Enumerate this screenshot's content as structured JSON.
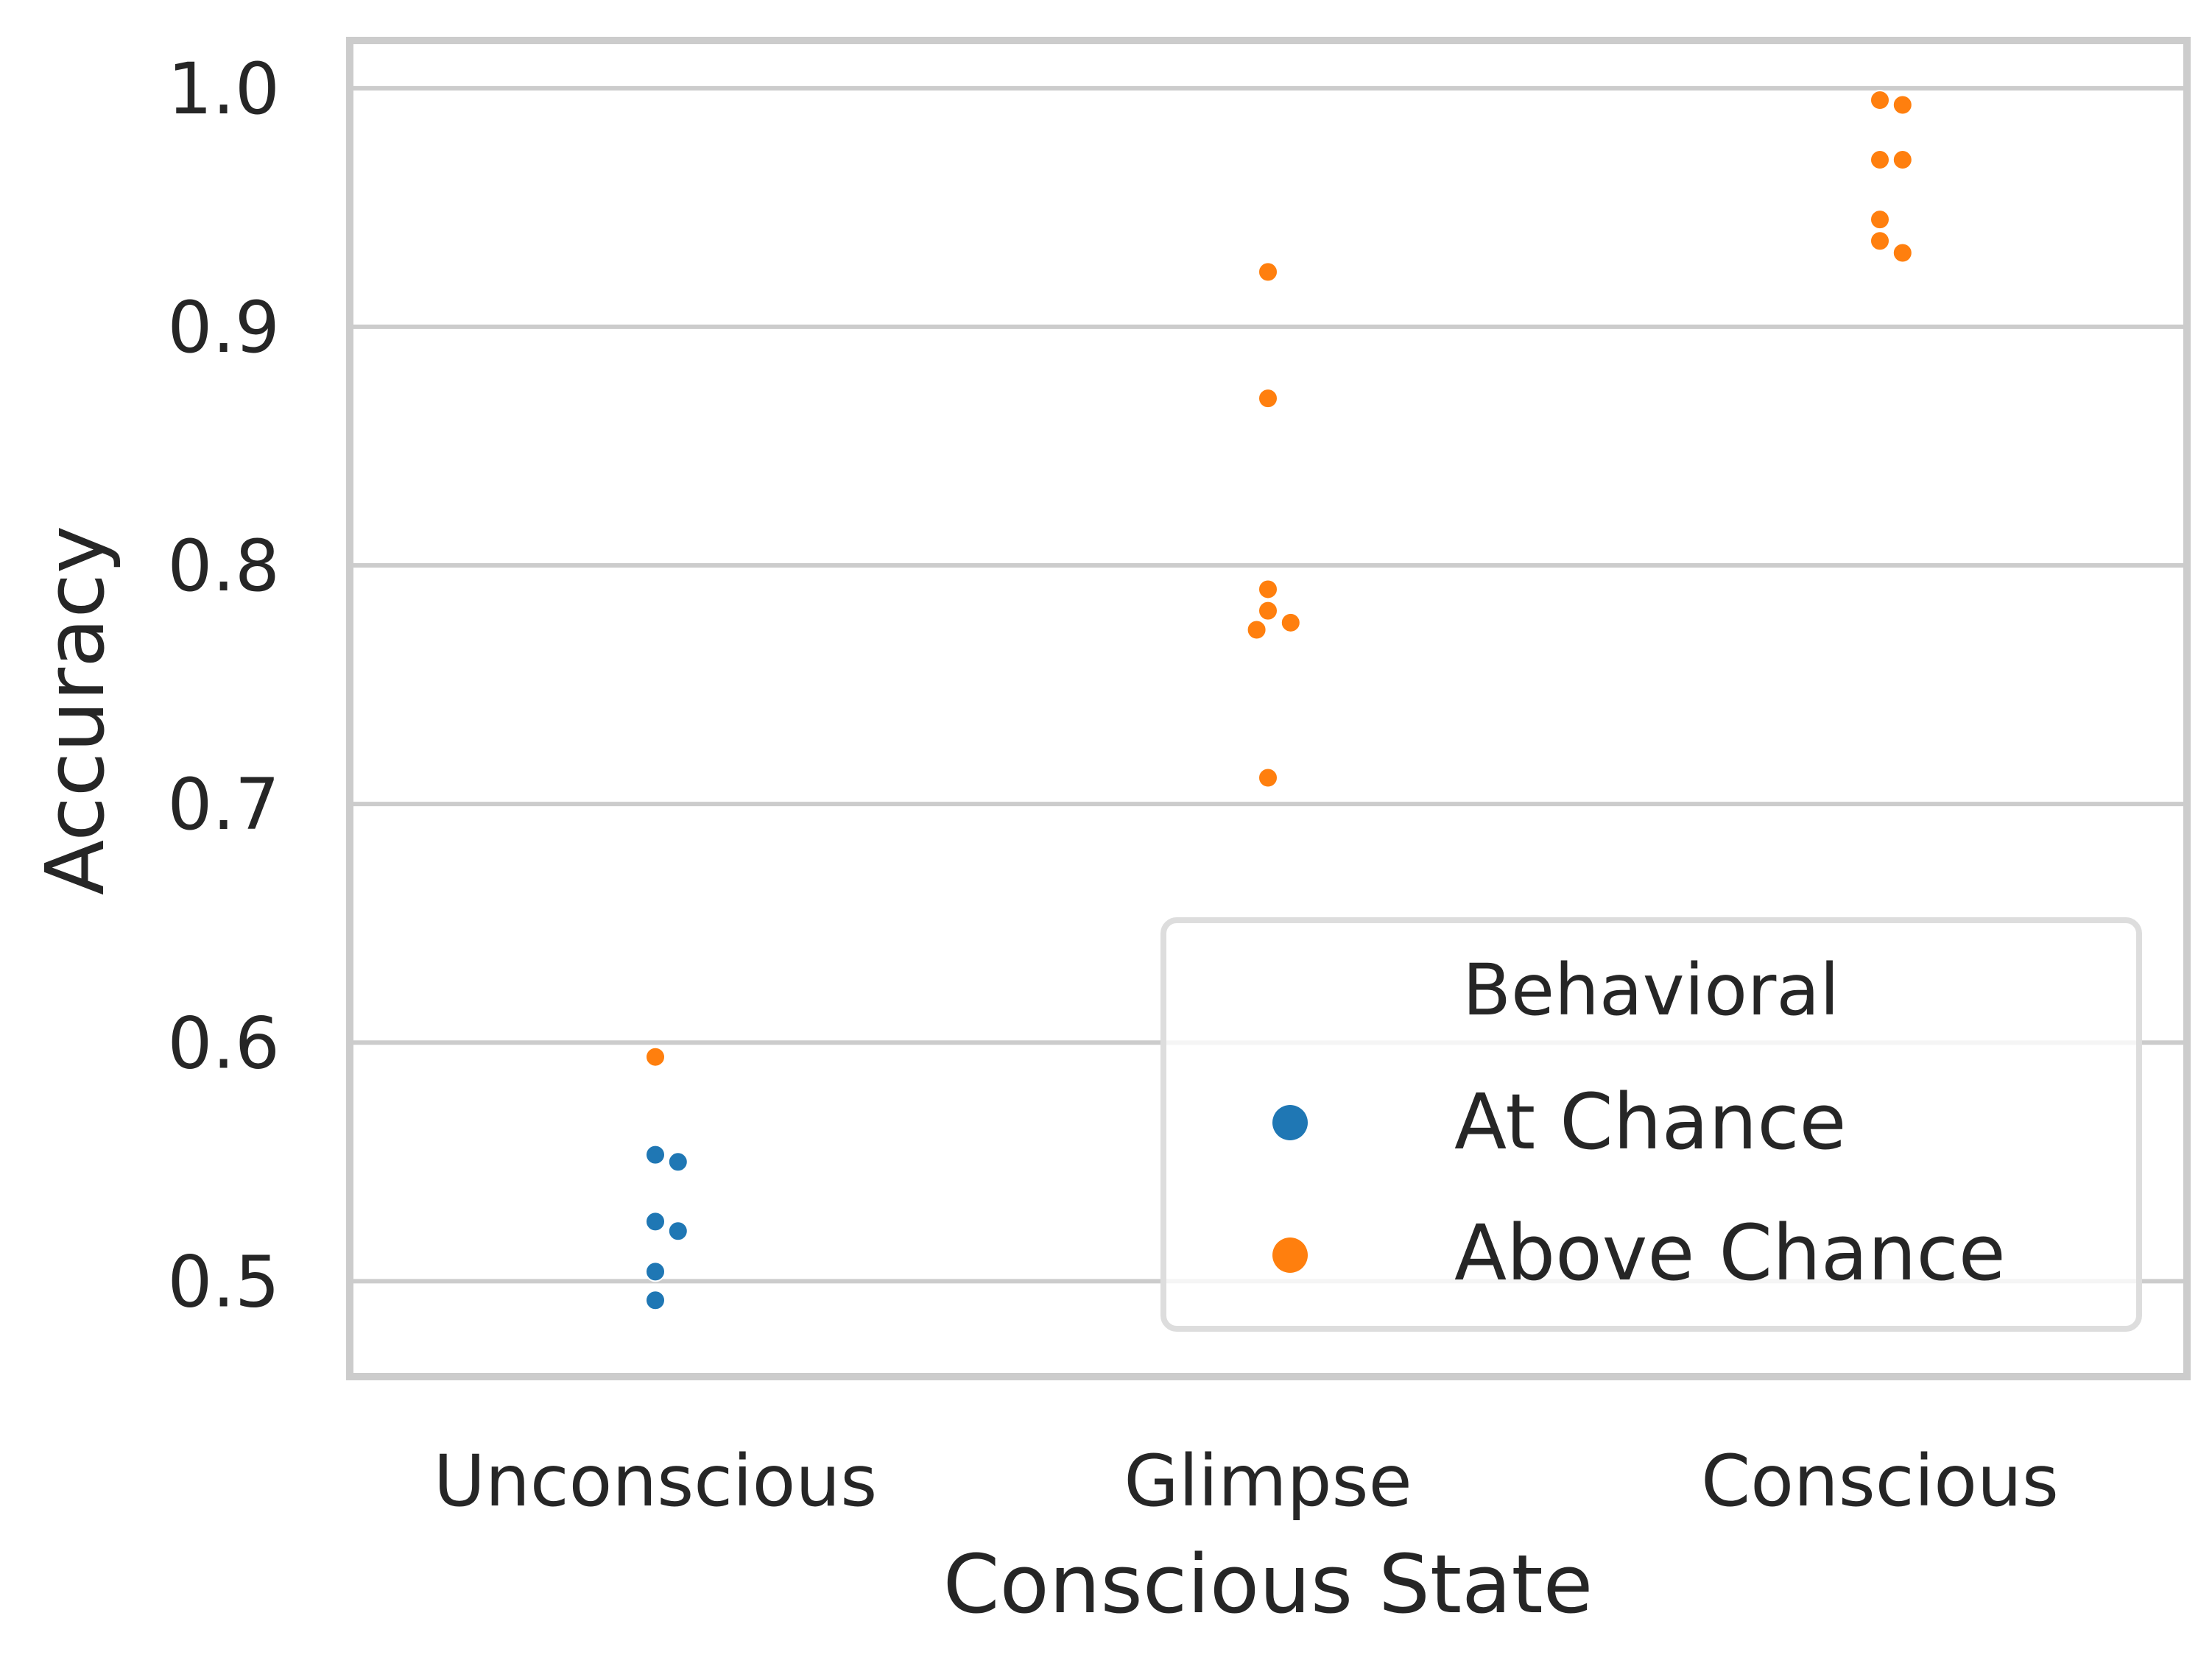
{
  "chart_data": {
    "type": "scatter",
    "xlabel": "Conscious State",
    "ylabel": "Accuracy",
    "categories": [
      "Unconscious",
      "Glimpse",
      "Conscious"
    ],
    "yticks": [
      0.5,
      0.6,
      0.7,
      0.8,
      0.9,
      1.0
    ],
    "ylim": [
      0.46,
      1.02
    ],
    "grid": true,
    "legend": {
      "title": "Behavioral",
      "position": "bottom-right",
      "entries": [
        {
          "name": "At Chance",
          "color": "#1f77b4"
        },
        {
          "name": "Above Chance",
          "color": "#ff7f0e"
        }
      ]
    },
    "series": [
      {
        "name": "At Chance",
        "color": "#1f77b4",
        "points": [
          {
            "category": "Unconscious",
            "y": 0.553
          },
          {
            "category": "Unconscious",
            "y": 0.55
          },
          {
            "category": "Unconscious",
            "y": 0.525
          },
          {
            "category": "Unconscious",
            "y": 0.521
          },
          {
            "category": "Unconscious",
            "y": 0.504
          },
          {
            "category": "Unconscious",
            "y": 0.492
          }
        ]
      },
      {
        "name": "Above Chance",
        "color": "#ff7f0e",
        "points": [
          {
            "category": "Unconscious",
            "y": 0.594
          },
          {
            "category": "Glimpse",
            "y": 0.923
          },
          {
            "category": "Glimpse",
            "y": 0.87
          },
          {
            "category": "Glimpse",
            "y": 0.79
          },
          {
            "category": "Glimpse",
            "y": 0.781
          },
          {
            "category": "Glimpse",
            "y": 0.776
          },
          {
            "category": "Glimpse",
            "y": 0.773
          },
          {
            "category": "Glimpse",
            "y": 0.711
          },
          {
            "category": "Conscious",
            "y": 0.995
          },
          {
            "category": "Conscious",
            "y": 0.993
          },
          {
            "category": "Conscious",
            "y": 0.97
          },
          {
            "category": "Conscious",
            "y": 0.97
          },
          {
            "category": "Conscious",
            "y": 0.945
          },
          {
            "category": "Conscious",
            "y": 0.936
          },
          {
            "category": "Conscious",
            "y": 0.931
          }
        ]
      }
    ]
  }
}
